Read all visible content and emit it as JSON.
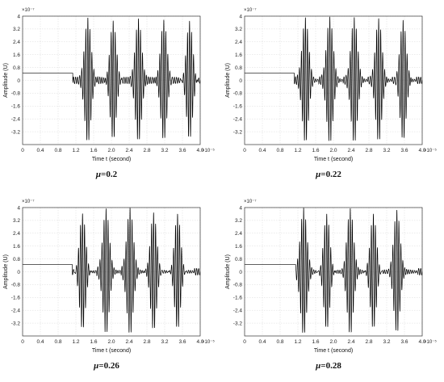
{
  "colors": {
    "signal": "#000000",
    "grid": "#d8d8d8",
    "axis": "#333333",
    "background": "#ffffff"
  },
  "chart_data": [
    {
      "type": "line",
      "caption": "μ=0.2",
      "mu_symbol": "μ",
      "mu_value": "=0.2",
      "xlabel": "Time t (second)",
      "ylabel": "Amplitude (U)",
      "x_multiplier": "×10⁻⁵",
      "y_multiplier": "×10⁻⁷",
      "xlim": [
        0,
        4.0
      ],
      "ylim": [
        -4,
        4
      ],
      "xticks": [
        "0",
        "0.4",
        "0.8",
        "1.2",
        "1.6",
        "2.0",
        "2.4",
        "2.8",
        "3.2",
        "3.6",
        "4.0"
      ],
      "yticks": [
        "-3.2",
        "-2.4",
        "-1.6",
        "-0.8",
        "0",
        "0.8",
        "1.6",
        "2.4",
        "3.2",
        "4"
      ],
      "grid": true,
      "baseline_level": 0.45,
      "onset_time": 1.13,
      "burst_centers": [
        1.47,
        2.04,
        2.61,
        3.18,
        3.76
      ],
      "burst_peak": 3.8,
      "burst_width": 0.1
    },
    {
      "type": "line",
      "caption": "μ=0.22",
      "mu_symbol": "μ",
      "mu_value": "=0.22",
      "xlabel": "Time t (second)",
      "ylabel": "Amplitude (U)",
      "x_multiplier": "×10⁻⁵",
      "y_multiplier": "×10⁻⁷",
      "xlim": [
        0,
        4.0
      ],
      "ylim": [
        -4,
        4
      ],
      "xticks": [
        "0",
        "0.4",
        "0.8",
        "1.2",
        "1.6",
        "2.0",
        "2.4",
        "2.8",
        "3.2",
        "3.6",
        "4.0"
      ],
      "yticks": [
        "-3.2",
        "-2.4",
        "-1.6",
        "-0.8",
        "0",
        "0.8",
        "1.6",
        "2.4",
        "3.2",
        "4"
      ],
      "grid": true,
      "baseline_level": 0.45,
      "onset_time": 1.12,
      "burst_centers": [
        1.37,
        1.92,
        2.47,
        3.02,
        3.57
      ],
      "burst_peak": 3.8,
      "burst_width": 0.1
    },
    {
      "type": "line",
      "caption": "μ=0.26",
      "mu_symbol": "μ",
      "mu_value": "=0.26",
      "xlabel": "Time t (second)",
      "ylabel": "Amplitude (U)",
      "x_multiplier": "×10⁻⁵",
      "y_multiplier": "×10⁻⁷",
      "xlim": [
        0,
        4.0
      ],
      "ylim": [
        -4,
        4
      ],
      "xticks": [
        "0",
        "0.4",
        "0.8",
        "1.2",
        "1.6",
        "2.0",
        "2.4",
        "2.8",
        "3.2",
        "3.6",
        "4.0"
      ],
      "yticks": [
        "-3.2",
        "-2.4",
        "-1.6",
        "-0.8",
        "0",
        "0.8",
        "1.6",
        "2.4",
        "3.2",
        "4"
      ],
      "grid": true,
      "baseline_level": 0.45,
      "onset_time": 1.12,
      "burst_centers": [
        1.35,
        1.88,
        2.42,
        2.95,
        3.49
      ],
      "burst_peak": 3.8,
      "burst_width": 0.1
    },
    {
      "type": "line",
      "caption": "μ=0.28",
      "mu_symbol": "μ",
      "mu_value": "=0.28",
      "xlabel": "Time t (second)",
      "ylabel": "Amplitude (U)",
      "x_multiplier": "×10⁻⁵",
      "y_multiplier": "×10⁻⁷",
      "xlim": [
        0,
        4.0
      ],
      "ylim": [
        -4,
        4
      ],
      "xticks": [
        "0",
        "0.4",
        "0.8",
        "1.2",
        "1.6",
        "2.0",
        "2.4",
        "2.8",
        "3.2",
        "3.6",
        "4.0"
      ],
      "yticks": [
        "-3.2",
        "-2.4",
        "-1.6",
        "-0.8",
        "0",
        "0.8",
        "1.6",
        "2.4",
        "3.2",
        "4"
      ],
      "grid": true,
      "baseline_level": 0.45,
      "onset_time": 1.15,
      "burst_centers": [
        1.33,
        1.85,
        2.38,
        2.9,
        3.43
      ],
      "burst_peak": 3.8,
      "burst_width": 0.1
    }
  ]
}
